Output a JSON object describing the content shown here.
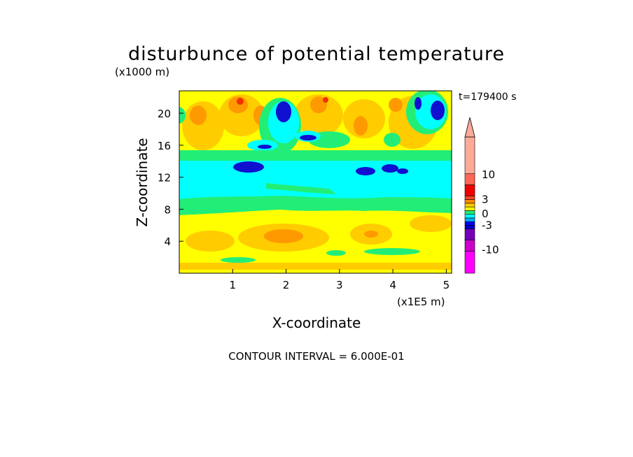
{
  "chart_data": {
    "type": "heatmap",
    "title": "disturbunce of potential temperature",
    "time_label": "t=179400 s",
    "xlabel": "X-coordinate",
    "ylabel": "Z-coordinate",
    "x_unit": "(x1E5 m)",
    "y_unit": "(x1000 m)",
    "xlim": [
      0,
      5.1
    ],
    "ylim": [
      0,
      22.8
    ],
    "x_ticks": [
      "1",
      "2",
      "3",
      "4",
      "5"
    ],
    "y_ticks": [
      "4",
      "8",
      "12",
      "16",
      "20"
    ],
    "footer": "CONTOUR INTERVAL = 6.000E-01",
    "colorbar": {
      "levels": [
        {
          "color": "#ff00ff",
          "value": -13
        },
        {
          "color": "#cc00cc",
          "value": -9
        },
        {
          "color": "#7700bb",
          "value": -6
        },
        {
          "color": "#0000cc",
          "value": -3.6
        },
        {
          "color": "#0000ff",
          "value": -2.4
        },
        {
          "color": "#00aaff",
          "value": -1.2
        },
        {
          "color": "#00ffff",
          "value": -0.6
        },
        {
          "color": "#22ee77",
          "value": 0.3
        },
        {
          "color": "#ffff00",
          "value": 0.9
        },
        {
          "color": "#ffcc00",
          "value": 1.5
        },
        {
          "color": "#ff8800",
          "value": 2.4
        },
        {
          "color": "#ff4422",
          "value": 3.6
        },
        {
          "color": "#ee0000",
          "value": 6
        },
        {
          "color": "#ff6655",
          "value": 9
        },
        {
          "color": "#ffaa99",
          "value": 14
        }
      ],
      "tick_labels": [
        "10",
        "3",
        "0",
        "-3",
        "-10"
      ]
    },
    "field_colors": {
      "magenta": "#ff00ff",
      "purple": "#7700bb",
      "dark_blue": "#1010d0",
      "blue": "#2040ff",
      "cyan": "#00ffff",
      "light_green": "#22ee77",
      "yellow": "#ffff00",
      "light_orange": "#ffcc00",
      "orange": "#ff9900",
      "red": "#ee3300",
      "salmon": "#ffaa99"
    },
    "regions": [
      {
        "z": [
          0.0,
          0.8
        ],
        "value": 0.9,
        "label": "yellow"
      },
      {
        "z": [
          0.8,
          2.0
        ],
        "value": 1.5,
        "label": "light_orange"
      },
      {
        "z": [
          2.0,
          7.5
        ],
        "value": 0.9,
        "label": "yellow"
      },
      {
        "z": [
          7.5,
          8.8
        ],
        "value": 0.3,
        "label": "light_green"
      },
      {
        "z": [
          8.8,
          14.5
        ],
        "value": -0.6,
        "label": "cyan"
      },
      {
        "z": [
          14.5,
          16.0
        ],
        "value": 0.3,
        "label": "light_green"
      },
      {
        "z": [
          16.0,
          22.8
        ],
        "value": 1.2,
        "label": "mixed yellow/orange"
      }
    ]
  }
}
